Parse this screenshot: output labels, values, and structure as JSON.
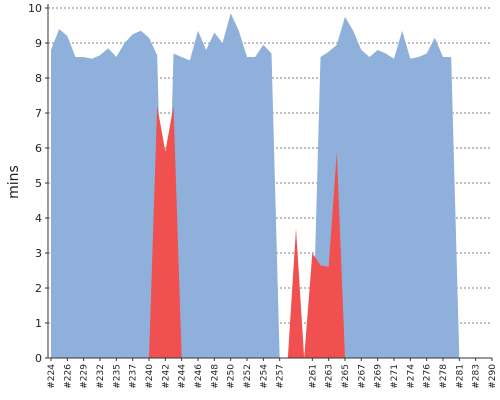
{
  "chart_data": {
    "type": "area",
    "ylabel": "mins",
    "ylim": [
      0,
      10
    ],
    "y_ticks": [
      "0",
      "1",
      "2",
      "3",
      "4",
      "5",
      "6",
      "7",
      "8",
      "9",
      "10"
    ],
    "grid": true,
    "x": [
      "#224",
      "#225",
      "#226",
      "#227",
      "#229",
      "#230",
      "#232",
      "#233",
      "#235",
      "#236",
      "#237",
      "#238",
      "#240",
      "#241",
      "#242",
      "#243",
      "#244",
      "#245",
      "#246",
      "#247",
      "#248",
      "#249",
      "#250",
      "#251",
      "#252",
      "#253",
      "#254",
      "#255",
      "#257",
      "#258",
      "#259",
      "#260",
      "#261",
      "#262",
      "#263",
      "#264",
      "#265",
      "#266",
      "#267",
      "#268",
      "#269",
      "#270",
      "#271",
      "#272",
      "#274",
      "#275",
      "#276",
      "#277",
      "#278",
      "#279",
      "#281",
      "#282",
      "#283",
      "#284",
      "#290"
    ],
    "x_tick_labels": [
      "#224",
      "#226",
      "#229",
      "#232",
      "#235",
      "#237",
      "#240",
      "#242",
      "#244",
      "#246",
      "#248",
      "#250",
      "#252",
      "#254",
      "#257",
      "#261",
      "#263",
      "#265",
      "#267",
      "#269",
      "#271",
      "#274",
      "#276",
      "#278",
      "#281",
      "#283",
      "#290"
    ],
    "series": [
      {
        "color": "#8eb0da",
        "values": [
          8.8,
          9.4,
          9.2,
          8.6,
          8.6,
          8.55,
          8.65,
          8.85,
          8.6,
          9.0,
          9.25,
          9.35,
          9.15,
          8.65,
          0,
          8.7,
          8.6,
          8.5,
          9.35,
          8.8,
          9.3,
          9.0,
          9.85,
          9.35,
          8.6,
          8.6,
          8.95,
          8.7,
          0,
          0,
          0,
          0,
          0,
          8.6,
          8.75,
          8.95,
          9.75,
          9.35,
          8.8,
          8.6,
          8.8,
          8.7,
          8.55,
          9.35,
          8.55,
          8.6,
          8.7,
          9.15,
          8.6,
          8.6,
          0,
          0,
          0,
          0,
          0
        ]
      },
      {
        "color": "#f05050",
        "values": [
          0,
          0,
          0,
          0,
          0,
          0,
          0,
          0,
          0,
          0,
          0,
          0,
          0,
          7.2,
          5.9,
          7.2,
          0,
          0,
          0,
          0,
          0,
          0,
          0,
          0,
          0,
          0,
          0,
          0,
          0,
          0,
          3.7,
          0,
          3.0,
          2.65,
          2.6,
          5.9,
          0,
          0,
          0,
          0,
          0,
          0,
          0,
          0,
          0,
          0,
          0,
          0,
          0,
          0,
          0,
          0,
          0,
          0,
          0
        ]
      }
    ]
  }
}
